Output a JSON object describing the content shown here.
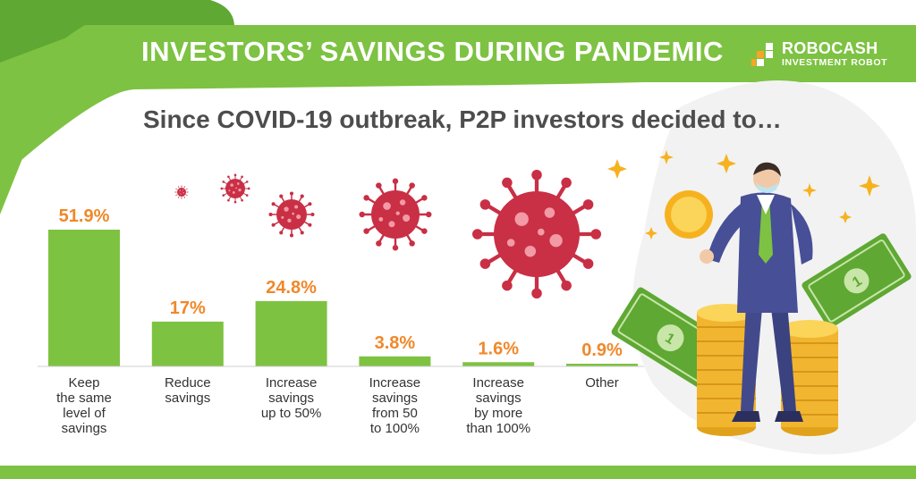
{
  "header": {
    "title": "INVESTORS’ SAVINGS DURING PANDEMIC"
  },
  "brand": {
    "name": "ROBOCASH",
    "tagline": "INVESTMENT ROBOT"
  },
  "colors": {
    "green": "#7dc242",
    "green_dark": "#5fa833",
    "bar": "#7ec242",
    "value_orange": "#f0882a",
    "virus": "#c92f45",
    "text": "#4d4d4d"
  },
  "chart_data": {
    "type": "bar",
    "title": "Since COVID-19 outbreak, P2P investors decided to…",
    "categories": [
      [
        "Keep",
        "the same",
        "level of",
        "savings"
      ],
      [
        "Reduce",
        "savings"
      ],
      [
        "Increase",
        "savings",
        "up to 50%"
      ],
      [
        "Increase",
        "savings",
        "from 50",
        "to 100%"
      ],
      [
        "Increase",
        "savings",
        "by more",
        "than 100%"
      ],
      [
        "Other"
      ]
    ],
    "values": [
      51.9,
      17,
      24.8,
      3.8,
      1.6,
      0.9
    ],
    "value_labels": [
      "51.9%",
      "17%",
      "24.8%",
      "3.8%",
      "1.6%",
      "0.9%"
    ],
    "unit": "%",
    "ylim": [
      0,
      51.9
    ],
    "grid": false,
    "legend": "none"
  }
}
